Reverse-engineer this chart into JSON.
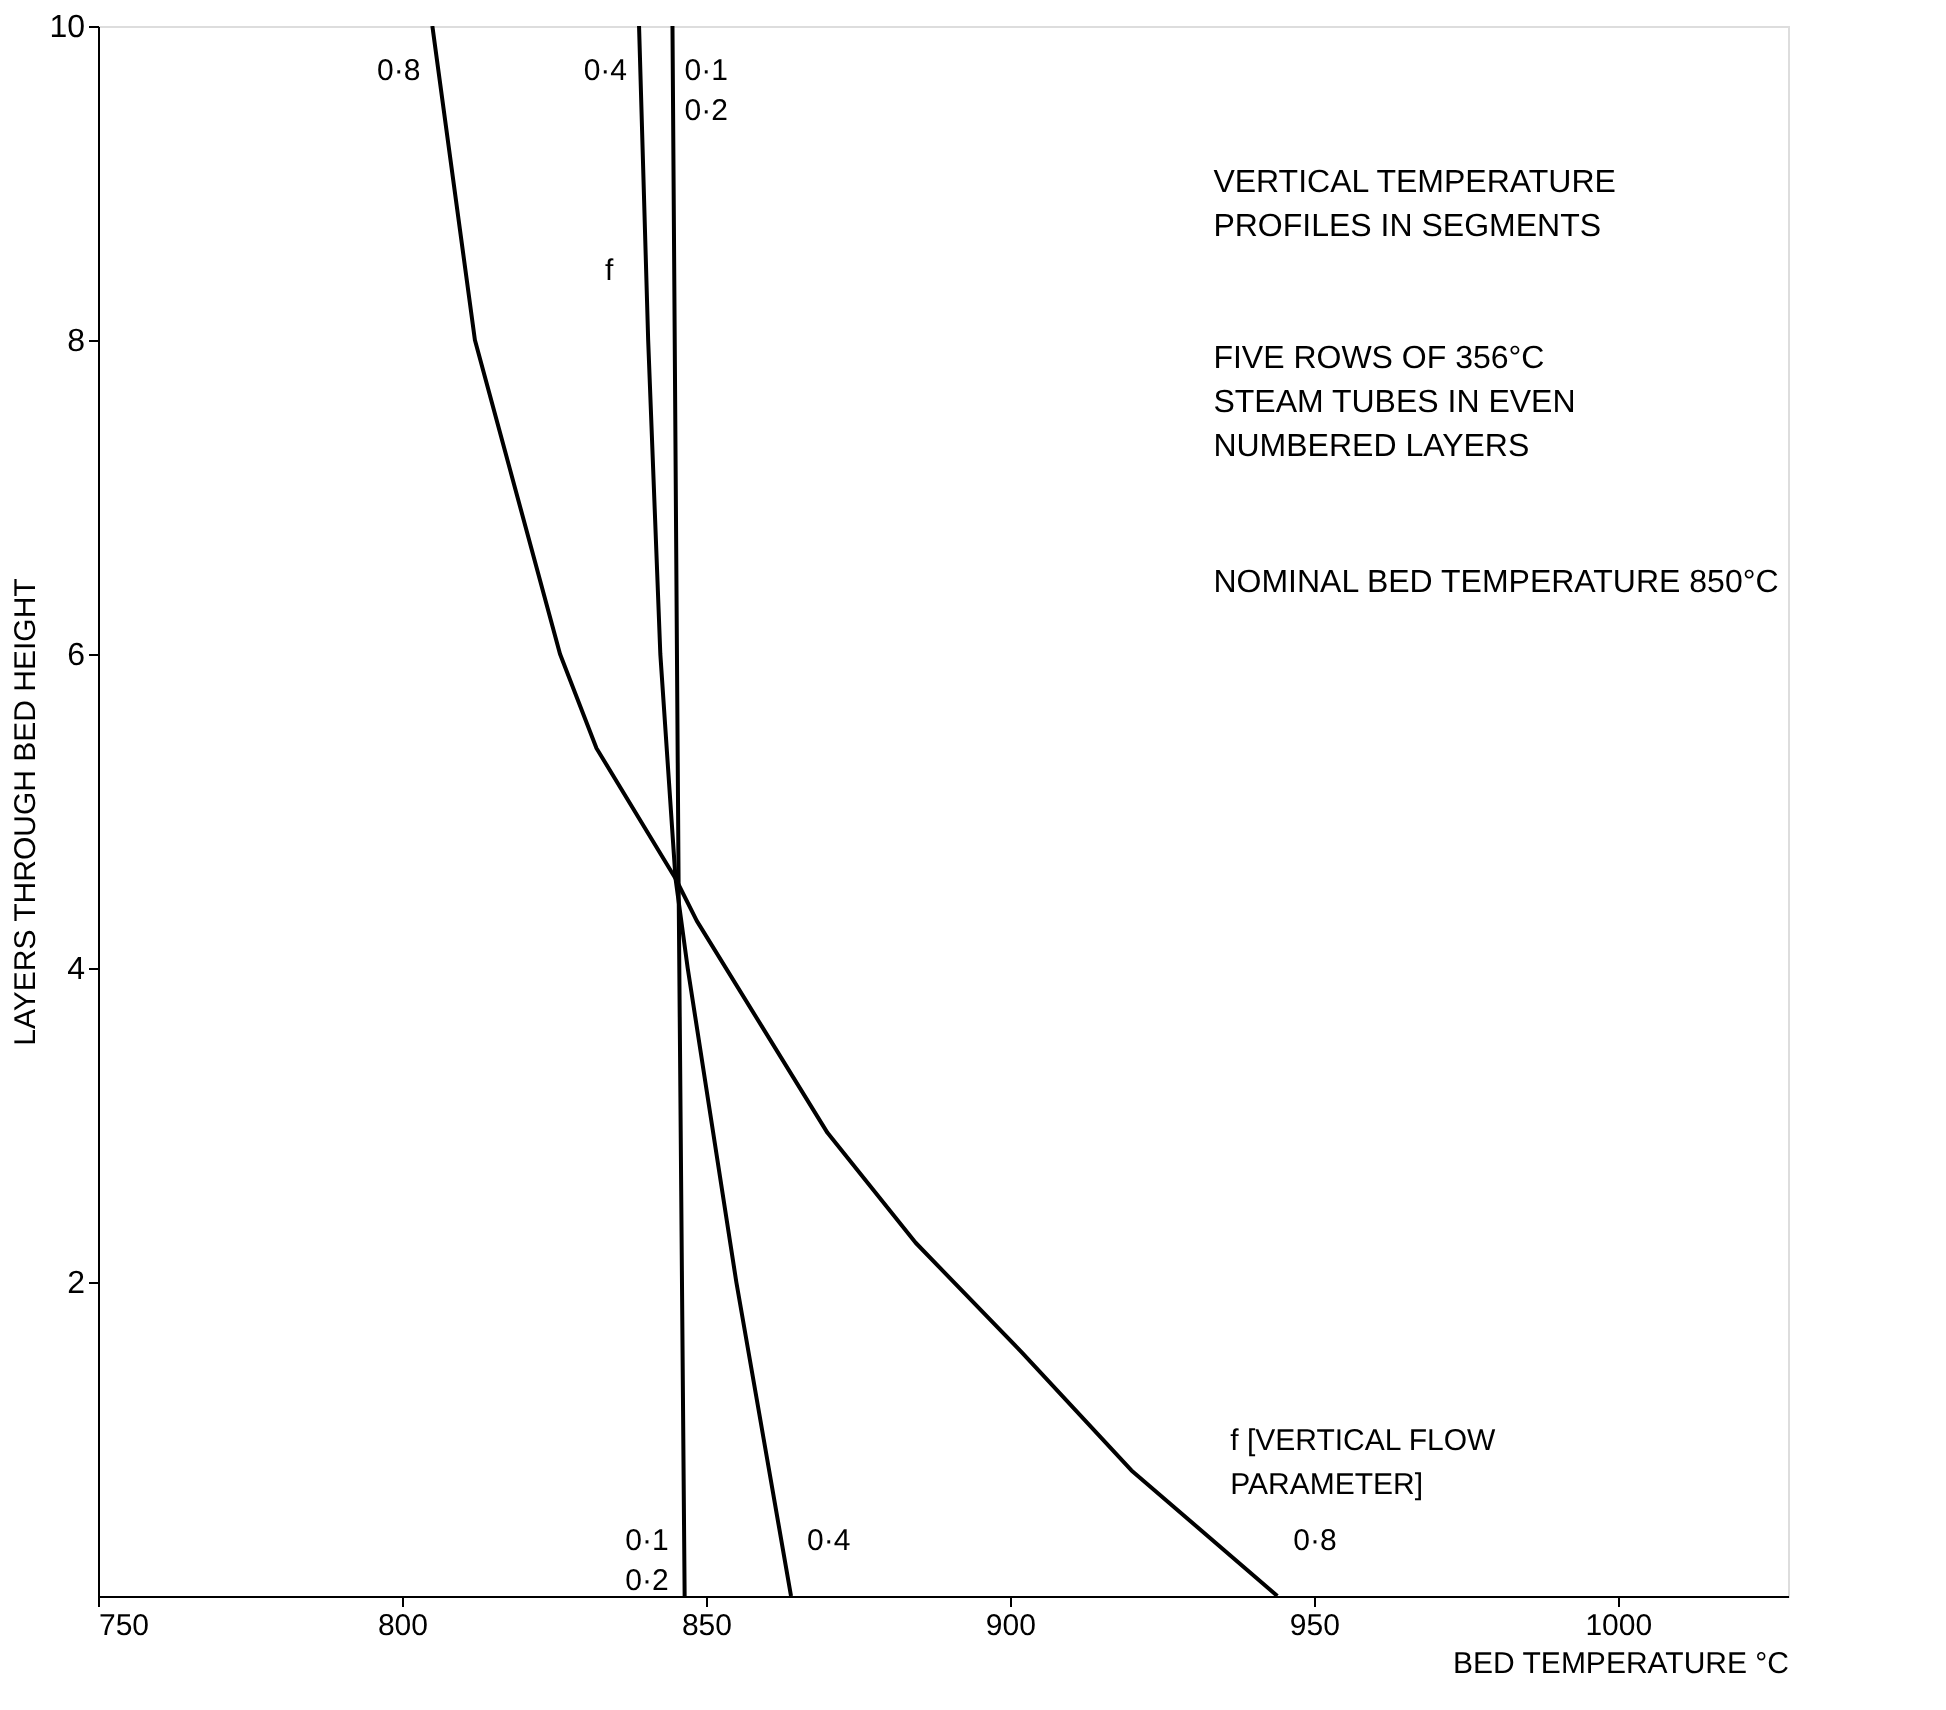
{
  "chart_data": {
    "type": "line",
    "xlabel": "BED TEMPERATURE °C",
    "ylabel": "LAYERS THROUGH BED HEIGHT",
    "xlim": [
      750,
      1028
    ],
    "xticks": [
      750,
      800,
      850,
      900,
      950,
      1000
    ],
    "ylim": [
      0,
      10
    ],
    "yticks": [
      2,
      4,
      6,
      8,
      10
    ],
    "grid": false,
    "line_style": "solid",
    "series": [
      {
        "name": "0·1\n0·2",
        "color": "#000000",
        "x": [
          846.5,
          845.5,
          844.5
        ],
        "values": [
          0,
          4.57,
          10
        ]
      },
      {
        "name": "0·4",
        "color": "#000000",
        "x": [
          864,
          859.5,
          855,
          851,
          847,
          845,
          842.5,
          840.5,
          839
        ],
        "values": [
          0,
          1,
          2,
          3,
          4,
          4.57,
          6,
          8,
          10
        ]
      },
      {
        "name": "0·8",
        "color": "#000000",
        "x": [
          944,
          920,
          902,
          884.5,
          870,
          848.5,
          845,
          832,
          826,
          812,
          805
        ],
        "values": [
          0,
          0.8,
          1.55,
          2.25,
          2.95,
          4.3,
          4.57,
          5.4,
          6,
          8,
          10
        ]
      }
    ],
    "annotations": [
      "VERTICAL TEMPERATURE\nPROFILES IN SEGMENTS",
      "FIVE ROWS OF 356°C\nSTEAM TUBES IN EVEN\nNUMBERED LAYERS",
      "NOMINAL BED TEMPERATURE 850°C",
      "f",
      "f [VERTICAL FLOW\nPARAMETER]"
    ]
  }
}
